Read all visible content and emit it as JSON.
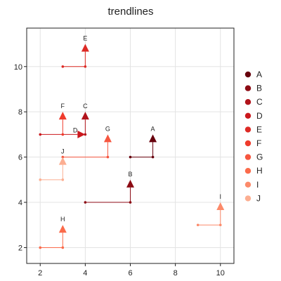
{
  "chart_data": {
    "type": "scatter",
    "title": "trendlines",
    "xlabel": "",
    "ylabel": "",
    "xlim": [
      1.4,
      10.6
    ],
    "ylim": [
      1.3,
      11.7
    ],
    "xticks": [
      2,
      4,
      6,
      8,
      10
    ],
    "yticks": [
      2,
      4,
      6,
      8,
      10
    ],
    "grid": true,
    "legend_position": "right",
    "series": [
      {
        "name": "A",
        "color": "#67000d",
        "path": [
          [
            6,
            6
          ],
          [
            7,
            6
          ],
          [
            7,
            7
          ]
        ],
        "label": "A"
      },
      {
        "name": "B",
        "color": "#8c0b14",
        "path": [
          [
            4,
            4
          ],
          [
            6,
            4
          ],
          [
            6,
            5
          ]
        ],
        "label": "B"
      },
      {
        "name": "C",
        "color": "#b1131b",
        "path": [
          [
            4,
            7
          ],
          [
            4,
            8
          ]
        ],
        "label": "C"
      },
      {
        "name": "D",
        "color": "#cb181d",
        "path": [
          [
            2,
            7
          ],
          [
            4,
            7
          ]
        ],
        "label": "D"
      },
      {
        "name": "E",
        "color": "#dd2a25",
        "path": [
          [
            3,
            10
          ],
          [
            4,
            10
          ],
          [
            4,
            11
          ]
        ],
        "label": "E"
      },
      {
        "name": "F",
        "color": "#ef3b2c",
        "path": [
          [
            3,
            7
          ],
          [
            3,
            8
          ]
        ],
        "label": "F"
      },
      {
        "name": "G",
        "color": "#f6563f",
        "path": [
          [
            3,
            6
          ],
          [
            5,
            6
          ],
          [
            5,
            7
          ]
        ],
        "label": "G"
      },
      {
        "name": "H",
        "color": "#fb6b4b",
        "path": [
          [
            2,
            2
          ],
          [
            3,
            2
          ],
          [
            3,
            3
          ]
        ],
        "label": "H"
      },
      {
        "name": "I",
        "color": "#fc8a6a",
        "path": [
          [
            9,
            3
          ],
          [
            10,
            3
          ],
          [
            10,
            4
          ]
        ],
        "label": "I"
      },
      {
        "name": "J",
        "color": "#fcae91",
        "path": [
          [
            2,
            5
          ],
          [
            3,
            5
          ],
          [
            3,
            6
          ]
        ],
        "label": "J"
      }
    ]
  }
}
